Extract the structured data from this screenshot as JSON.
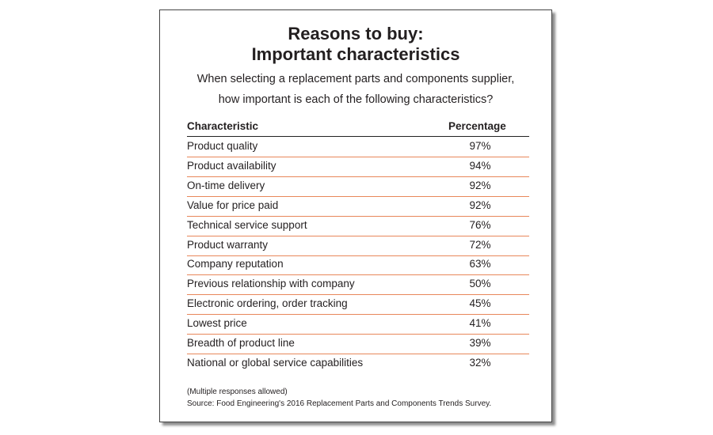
{
  "title": [
    "Reasons to buy:",
    "Important characteristics"
  ],
  "subtitle": [
    "When selecting a replacement parts and components supplier,",
    "how important is each of the following characteristics?"
  ],
  "table": {
    "header": [
      "Characteristic",
      "Percentage"
    ],
    "rows": [
      [
        "Product quality",
        "97%"
      ],
      [
        "Product availability",
        "94%"
      ],
      [
        "On-time delivery",
        "92%"
      ],
      [
        "Value for price paid",
        "92%"
      ],
      [
        "Technical service support",
        "76%"
      ],
      [
        "Product warranty",
        "72%"
      ],
      [
        "Company reputation",
        "63%"
      ],
      [
        "Previous relationship with company",
        "50%"
      ],
      [
        "Electronic ordering, order tracking",
        "45%"
      ],
      [
        "Lowest price",
        "41%"
      ],
      [
        "Breadth of product line",
        "39%"
      ],
      [
        "National or global service capabilities",
        "32%"
      ]
    ]
  },
  "notes": [
    "(Multiple responses allowed)",
    "Source: Food Engineering's 2016 Replacement Parts and Components Trends Survey."
  ]
}
